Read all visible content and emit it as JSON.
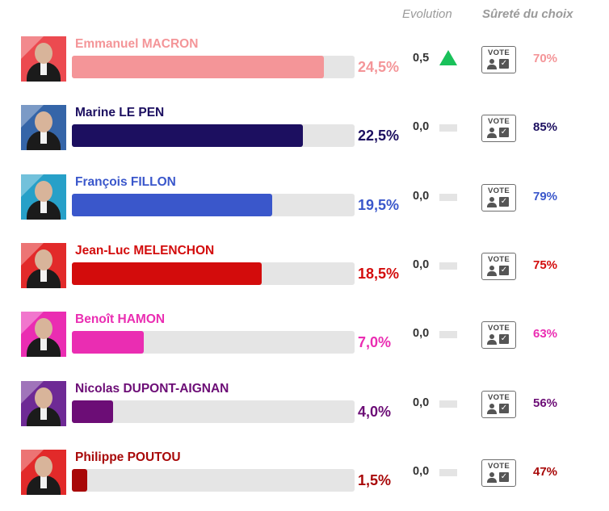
{
  "headers": {
    "evolution": "Evolution",
    "surete": "Sûreté du choix"
  },
  "vote_label": "VOTE",
  "chart_data": {
    "type": "bar",
    "categories": [
      "Emmanuel MACRON",
      "Marine LE PEN",
      "François FILLON",
      "Jean-Luc MELENCHON",
      "Benoît HAMON",
      "Nicolas DUPONT-AIGNAN",
      "Philippe POUTOU"
    ],
    "values": [
      24.5,
      22.5,
      19.5,
      18.5,
      7.0,
      4.0,
      1.5
    ],
    "value_labels": [
      "24,5%",
      "22,5%",
      "19,5%",
      "18,5%",
      "7,0%",
      "4,0%",
      "1,5%"
    ],
    "evolution": [
      "0,5",
      "0,0",
      "0,0",
      "0,0",
      "0,0",
      "0,0",
      "0,0"
    ],
    "evolution_direction": [
      "up",
      "flat",
      "flat",
      "flat",
      "flat",
      "flat",
      "flat"
    ],
    "surete": [
      "70%",
      "85%",
      "79%",
      "75%",
      "63%",
      "56%",
      "47%"
    ],
    "colors": [
      "#f49598",
      "#1c0f60",
      "#3a57cb",
      "#d30c0c",
      "#ea2db2",
      "#6c0d76",
      "#a80808"
    ],
    "photo_colors": [
      "#ec4a50",
      "#3565a8",
      "#27a0c8",
      "#e22a2a",
      "#ea2db2",
      "#6e2a95",
      "#e22a2a"
    ],
    "xlim": [
      0,
      27.5
    ],
    "xlabel": "",
    "ylabel": "",
    "grid": false
  }
}
